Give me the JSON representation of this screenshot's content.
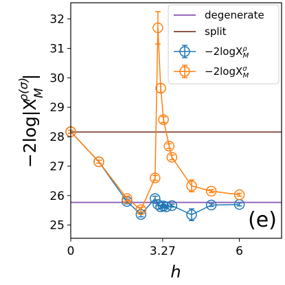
{
  "chart_data": {
    "type": "line",
    "panel_label": "(e)",
    "xlabel": "h",
    "ylabel": "−2log|X",
    "ylabel_sub": "M",
    "ylabel_sup": "ρ(σ)",
    "xlim": [
      0,
      7.5
    ],
    "ylim": [
      24.55,
      32.55
    ],
    "x_ticks": [
      {
        "value": 0,
        "label": "0"
      },
      {
        "value": 3.27,
        "label": "3.27"
      },
      {
        "value": 6,
        "label": "6"
      }
    ],
    "y_ticks": [
      {
        "value": 25,
        "label": "25"
      },
      {
        "value": 26,
        "label": "26"
      },
      {
        "value": 27,
        "label": "27"
      },
      {
        "value": 28,
        "label": "28"
      },
      {
        "value": 29,
        "label": "29"
      },
      {
        "value": 30,
        "label": "30"
      },
      {
        "value": 31,
        "label": "31"
      },
      {
        "value": 32,
        "label": "32"
      }
    ],
    "hlines": [
      {
        "name": "degenerate",
        "y": 25.77,
        "color": "#9467bd"
      },
      {
        "name": "split",
        "y": 28.16,
        "color": "#8c564b"
      }
    ],
    "series": [
      {
        "name": "−2logX",
        "name_sub": "M",
        "name_sup": "ρ",
        "color": "#1f77b4",
        "points": [
          {
            "x": 0,
            "y": 28.17,
            "err": 0.05
          },
          {
            "x": 1.0,
            "y": 27.15,
            "err": 0.05
          },
          {
            "x": 2.0,
            "y": 25.8,
            "err": 0.08
          },
          {
            "x": 2.5,
            "y": 25.36,
            "err": 0.08
          },
          {
            "x": 3.0,
            "y": 25.9,
            "err": 0.08
          },
          {
            "x": 3.1,
            "y": 25.7,
            "err": 0.05
          },
          {
            "x": 3.2,
            "y": 25.62,
            "err": 0.05
          },
          {
            "x": 3.3,
            "y": 25.65,
            "err": 0.05
          },
          {
            "x": 3.4,
            "y": 25.62,
            "err": 0.05
          },
          {
            "x": 3.6,
            "y": 25.66,
            "err": 0.05
          },
          {
            "x": 4.3,
            "y": 25.35,
            "err": 0.2
          },
          {
            "x": 5.0,
            "y": 25.68,
            "err": 0.05
          },
          {
            "x": 6.0,
            "y": 25.7,
            "err": 0.05
          }
        ]
      },
      {
        "name": "−2logX",
        "name_sub": "M",
        "name_sup": "σ",
        "color": "#ff7f0e",
        "points": [
          {
            "x": 0,
            "y": 28.17,
            "err": 0.05
          },
          {
            "x": 1.0,
            "y": 27.15,
            "err": 0.05
          },
          {
            "x": 2.0,
            "y": 25.9,
            "err": 0.08
          },
          {
            "x": 2.5,
            "y": 25.52,
            "err": 0.08
          },
          {
            "x": 3.0,
            "y": 26.6,
            "err": 0.08
          },
          {
            "x": 3.1,
            "y": 31.7,
            "err": 0.55
          },
          {
            "x": 3.2,
            "y": 29.65,
            "err": 0.15
          },
          {
            "x": 3.3,
            "y": 28.58,
            "err": 0.1
          },
          {
            "x": 3.5,
            "y": 27.68,
            "err": 0.08
          },
          {
            "x": 3.6,
            "y": 27.3,
            "err": 0.08
          },
          {
            "x": 4.3,
            "y": 26.33,
            "err": 0.2
          },
          {
            "x": 5.0,
            "y": 26.15,
            "err": 0.05
          },
          {
            "x": 6.0,
            "y": 26.03,
            "err": 0.05
          }
        ]
      }
    ]
  }
}
